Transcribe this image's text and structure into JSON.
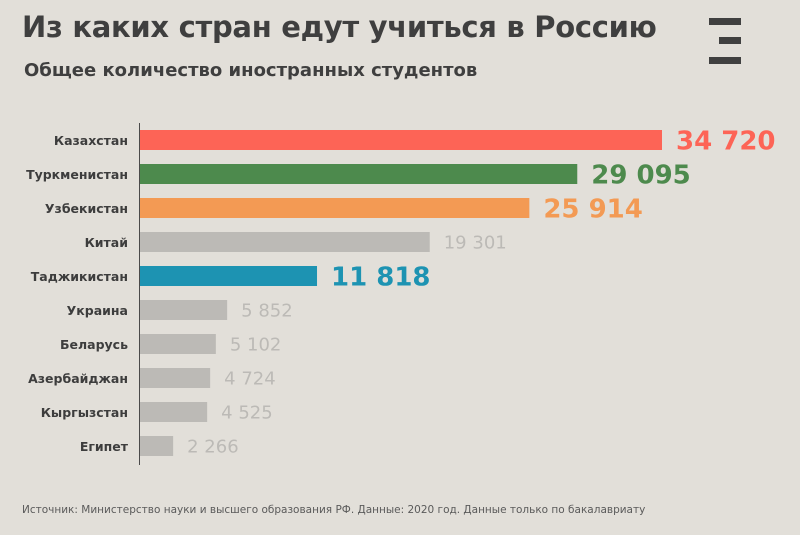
{
  "title": "Из каких стран едут учиться в Россию",
  "subtitle": "Общее количество иностранных студентов",
  "source": "Источник: Министерство науки и высшего образования РФ. Данные: 2020 год. Данные только по бакалавриату",
  "logo_icon": "three-bars-logo-icon",
  "colors": {
    "background": "#e2dfd9",
    "default_bar": "#bcbab6",
    "default_label": "#bcbab6"
  },
  "chart_data": {
    "type": "bar",
    "orientation": "horizontal",
    "categories": [
      "Казахстан",
      "Туркменистан",
      "Узбекистан",
      "Китай",
      "Таджикистан",
      "Украина",
      "Беларусь",
      "Азербайджан",
      "Кыргызстан",
      "Египет"
    ],
    "values": [
      34720,
      29095,
      25914,
      19301,
      11818,
      5852,
      5102,
      4724,
      4525,
      2266
    ],
    "value_labels": [
      "34 720",
      "29 095",
      "25 914",
      "19 301",
      "11 818",
      "5 852",
      "5 102",
      "4 724",
      "4 525",
      "2 266"
    ],
    "highlight_colors": {
      "Казахстан": "#fd6456",
      "Туркменистан": "#4d8a4d",
      "Узбекистан": "#f39a54",
      "Таджикистан": "#1d93b2"
    },
    "xlim": [
      0,
      34720
    ],
    "grid": false,
    "legend": "none"
  }
}
